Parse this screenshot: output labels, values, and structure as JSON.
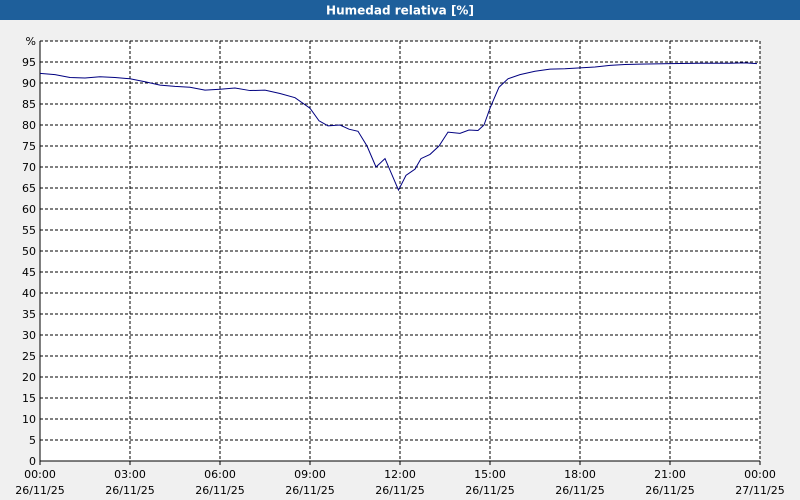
{
  "chart_data": {
    "type": "line",
    "title": "Humedad relativa [%]",
    "x": [
      0,
      0.5,
      1,
      1.5,
      2,
      2.5,
      3,
      3.5,
      4,
      4.5,
      5,
      5.5,
      6,
      6.5,
      7,
      7.5,
      8,
      8.5,
      9,
      9.3,
      9.6,
      10,
      10.3,
      10.6,
      10.9,
      11.2,
      11.5,
      11.8,
      11.95,
      12.2,
      12.5,
      12.7,
      13,
      13.3,
      13.6,
      14,
      14.3,
      14.6,
      14.8,
      15,
      15.3,
      15.6,
      16,
      16.5,
      17,
      17.5,
      18,
      18.5,
      19,
      19.5,
      20,
      21,
      22,
      23,
      23.5,
      23.9
    ],
    "series": [
      {
        "name": "Humedad relativa",
        "color": "#000080",
        "values": [
          92.3,
          92,
          91.3,
          91.2,
          91.5,
          91.3,
          91,
          90.3,
          89.5,
          89.2,
          89,
          88.3,
          88.5,
          88.8,
          88.2,
          88.3,
          87.5,
          86.5,
          84,
          81,
          79.8,
          80,
          79,
          78.5,
          75,
          70,
          72,
          67,
          64.5,
          68,
          69.5,
          72,
          73,
          75,
          78.3,
          78,
          78.8,
          78.7,
          80,
          84,
          89,
          91,
          92,
          92.8,
          93.3,
          93.4,
          93.6,
          93.8,
          94.2,
          94.4,
          94.5,
          94.6,
          94.7,
          94.7,
          94.8,
          94.6
        ]
      }
    ],
    "xlim": [
      0,
      24
    ],
    "xticks": [
      {
        "value": 0,
        "label": "00:00"
      },
      {
        "value": 3,
        "label": "03:00"
      },
      {
        "value": 6,
        "label": "06:00"
      },
      {
        "value": 9,
        "label": "09:00"
      },
      {
        "value": 12,
        "label": "12:00"
      },
      {
        "value": 15,
        "label": "15:00"
      },
      {
        "value": 18,
        "label": "18:00"
      },
      {
        "value": 21,
        "label": "21:00"
      },
      {
        "value": 24,
        "label": "00:00"
      }
    ],
    "xtick_dates": [
      "26/11/25",
      "26/11/25",
      "26/11/25",
      "26/11/25",
      "26/11/25",
      "26/11/25",
      "26/11/25",
      "26/11/25",
      "27/11/25"
    ],
    "ylim": [
      0,
      100
    ],
    "yticks": [
      0,
      5,
      10,
      15,
      20,
      25,
      30,
      35,
      40,
      45,
      50,
      55,
      60,
      65,
      70,
      75,
      80,
      85,
      90,
      95,
      {
        "value": 100,
        "label": "%"
      }
    ],
    "grid": true
  }
}
